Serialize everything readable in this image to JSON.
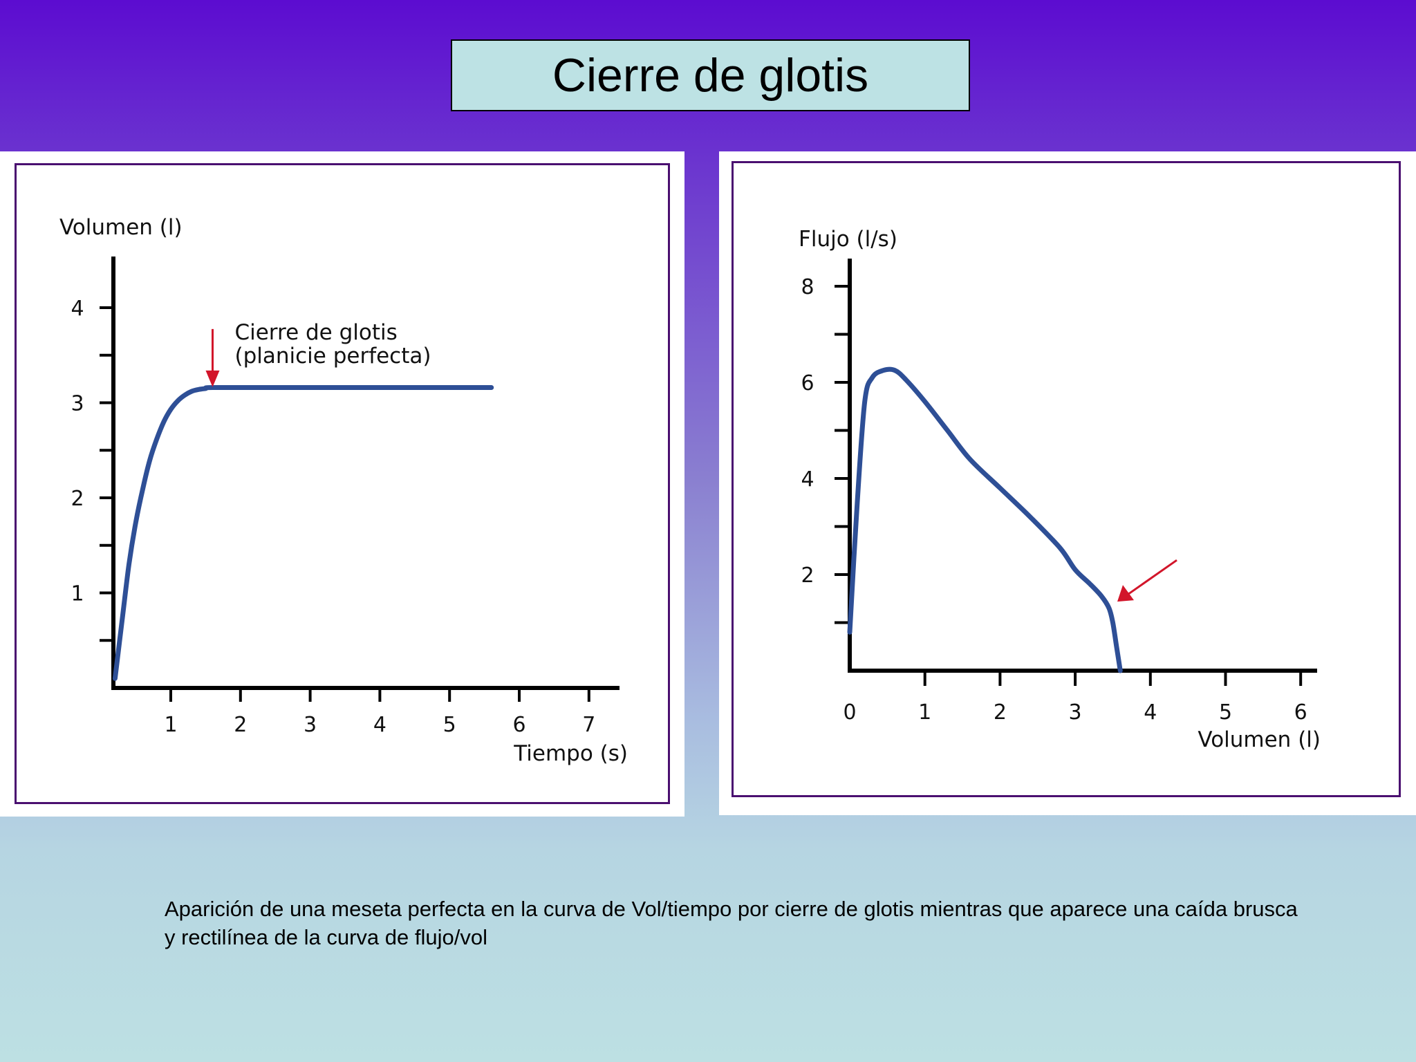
{
  "slide": {
    "title": "Cierre de glotis",
    "caption": "Aparición de una meseta perfecta en la curva de Vol/tiempo por cierre de glotis mientras que aparece una caída brusca y rectilínea de la curva de flujo/vol"
  },
  "colors": {
    "curve": "#2e4f96",
    "arrow": "#d2152a",
    "frame": "#4a0f70",
    "title_bg": "#bde2e4"
  },
  "chart_data": [
    {
      "type": "line",
      "title": "",
      "ylabel": "Volumen (l)",
      "xlabel": "Tiempo (s)",
      "xlim": [
        0.2,
        7.2
      ],
      "ylim": [
        0,
        4.6
      ],
      "x_ticks": [
        "1",
        "2",
        "3",
        "4",
        "5",
        "6",
        "7"
      ],
      "x_tick_values": [
        1,
        2,
        3,
        4,
        5,
        6,
        7
      ],
      "y_ticks": [
        "1",
        "2",
        "3",
        "4"
      ],
      "y_tick_values": [
        1,
        2,
        3,
        4
      ],
      "y_minor_ticks": [
        0.5,
        1.5,
        2.5,
        3.5
      ],
      "annotation": {
        "line1": "Cierre de glotis",
        "line2": "(planicie perfecta)",
        "arrow_at": [
          1.6,
          3.15
        ]
      },
      "series": [
        {
          "x": [
            0.2,
            0.3,
            0.4,
            0.5,
            0.6,
            0.7,
            0.8,
            0.9,
            1.0,
            1.1,
            1.2,
            1.3,
            1.4,
            1.5,
            1.6,
            2.5,
            3.5,
            4.5,
            5.6
          ],
          "y": [
            0.1,
            0.7,
            1.3,
            1.75,
            2.1,
            2.4,
            2.62,
            2.8,
            2.93,
            3.02,
            3.08,
            3.12,
            3.14,
            3.15,
            3.16,
            3.16,
            3.16,
            3.16,
            3.16
          ]
        }
      ]
    },
    {
      "type": "line",
      "title": "",
      "ylabel": "Flujo (l/s)",
      "xlabel": "Volumen (l)",
      "xlim": [
        0,
        6.4
      ],
      "ylim": [
        0,
        8.5
      ],
      "x_ticks": [
        "0",
        "1",
        "2",
        "3",
        "4",
        "5",
        "6"
      ],
      "x_tick_values": [
        0,
        1,
        2,
        3,
        4,
        5,
        6
      ],
      "y_ticks": [
        "2",
        "4",
        "6",
        "8"
      ],
      "y_tick_values": [
        2,
        4,
        6,
        8
      ],
      "y_minor_ticks": [
        1,
        3,
        5,
        7
      ],
      "annotation": {
        "arrow_at": [
          3.45,
          1.35
        ]
      },
      "series": [
        {
          "x": [
            0.0,
            0.1,
            0.2,
            0.3,
            0.45,
            0.6,
            0.75,
            1.0,
            1.3,
            1.6,
            2.0,
            2.4,
            2.8,
            3.0,
            3.2,
            3.35,
            3.45,
            3.5,
            3.55,
            3.6
          ],
          "y": [
            0.8,
            3.5,
            5.6,
            6.1,
            6.25,
            6.25,
            6.05,
            5.6,
            5.0,
            4.4,
            3.8,
            3.2,
            2.55,
            2.1,
            1.8,
            1.55,
            1.3,
            1.0,
            0.5,
            0.0
          ]
        }
      ]
    }
  ]
}
